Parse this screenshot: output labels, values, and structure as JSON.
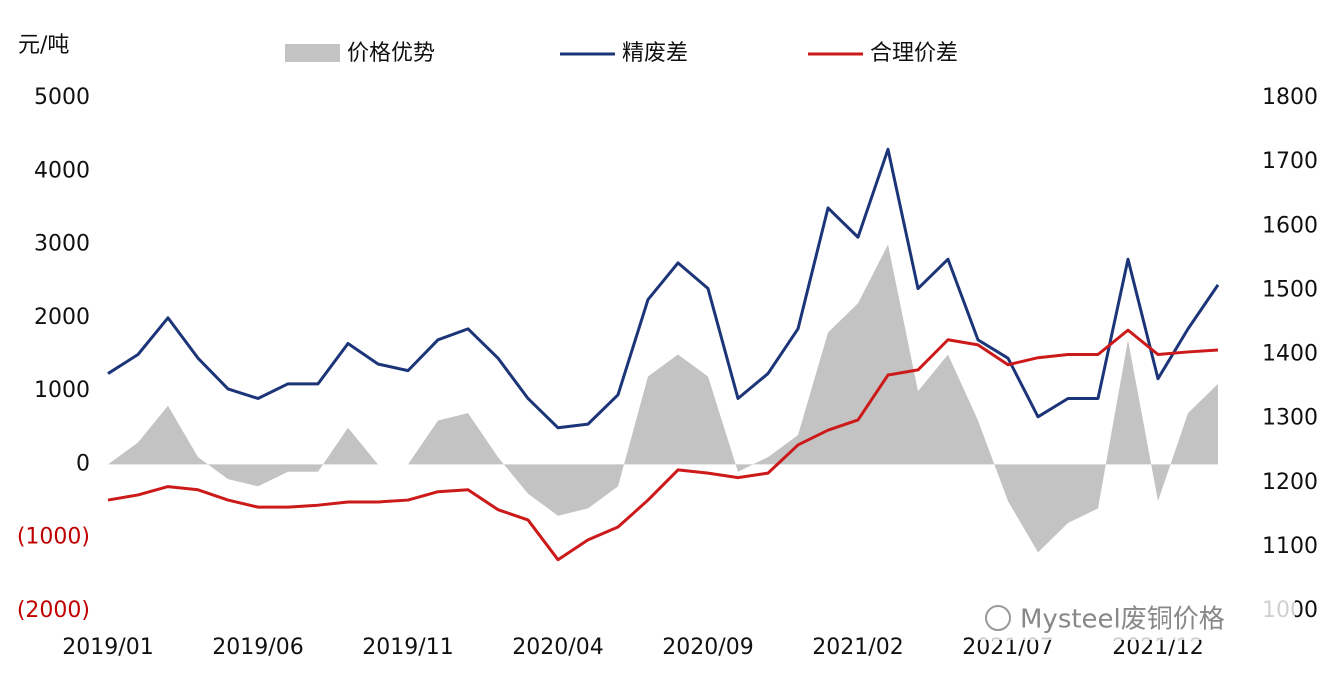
{
  "chart_data": {
    "type": "line",
    "y_label": "元/吨",
    "x": [
      "2019/01",
      "2019/02",
      "2019/03",
      "2019/04",
      "2019/05",
      "2019/06",
      "2019/07",
      "2019/08",
      "2019/09",
      "2019/10",
      "2019/11",
      "2019/12",
      "2020/01",
      "2020/02",
      "2020/03",
      "2020/04",
      "2020/05",
      "2020/06",
      "2020/07",
      "2020/08",
      "2020/09",
      "2020/10",
      "2020/11",
      "2020/12",
      "2021/01",
      "2021/02",
      "2021/03",
      "2021/04",
      "2021/05",
      "2021/06",
      "2021/07",
      "2021/08",
      "2021/09",
      "2021/10",
      "2021/11",
      "2021/12",
      "2022/01",
      "2022/02"
    ],
    "xticks": [
      "2019/01",
      "2019/06",
      "2019/11",
      "2020/04",
      "2020/09",
      "2021/02",
      "2021/07",
      "2021/12"
    ],
    "series": [
      {
        "name": "价格优势",
        "color": "#c3c3c3",
        "kind": "area",
        "values": [
          0,
          300,
          800,
          100,
          -200,
          -300,
          -100,
          -100,
          500,
          0,
          0,
          600,
          700,
          100,
          -400,
          -700,
          -600,
          -300,
          1200,
          1500,
          1200,
          -100,
          100,
          400,
          1800,
          2200,
          3000,
          1000,
          1500,
          600,
          -500,
          -1200,
          -800,
          -600,
          1700,
          -500,
          700,
          1100
        ]
      },
      {
        "name": "精废差",
        "color": "#1c3578",
        "kind": "line",
        "values": [
          1240,
          1500,
          2000,
          1450,
          1030,
          900,
          1100,
          1100,
          1650,
          1370,
          1280,
          1700,
          1850,
          1450,
          900,
          500,
          550,
          950,
          2250,
          2750,
          2400,
          900,
          1240,
          1850,
          3500,
          3100,
          4300,
          2400,
          2800,
          1700,
          1450,
          650,
          900,
          900,
          2800,
          1170,
          1850,
          2450
        ]
      },
      {
        "name": "合理价差",
        "color": "#cc1a1a",
        "kind": "line",
        "axis": "y2",
        "values": [
          1173,
          1181,
          1194,
          1189,
          1173,
          1162,
          1162,
          1165,
          1170,
          1170,
          1173,
          1186,
          1189,
          1158,
          1142,
          1080,
          1111,
          1131,
          1173,
          1220,
          1215,
          1208,
          1215,
          1259,
          1282,
          1298,
          1368,
          1376,
          1423,
          1415,
          1384,
          1395,
          1400,
          1400,
          1438,
          1400,
          1404,
          1407
        ]
      }
    ],
    "ylim": [
      -2000,
      5000
    ],
    "yticks": [
      {
        "value": -2000,
        "label": "(2000)"
      },
      {
        "value": -1000,
        "label": "(1000)"
      },
      0,
      1000,
      2000,
      3000,
      4000,
      5000
    ],
    "y2lim": [
      1000,
      1800
    ],
    "y2ticks": [
      1000,
      1100,
      1200,
      1300,
      1400,
      1500,
      1600,
      1700,
      1800
    ],
    "negative_tick_color": "#c00000",
    "watermark": "Mysteel废铜价格"
  }
}
